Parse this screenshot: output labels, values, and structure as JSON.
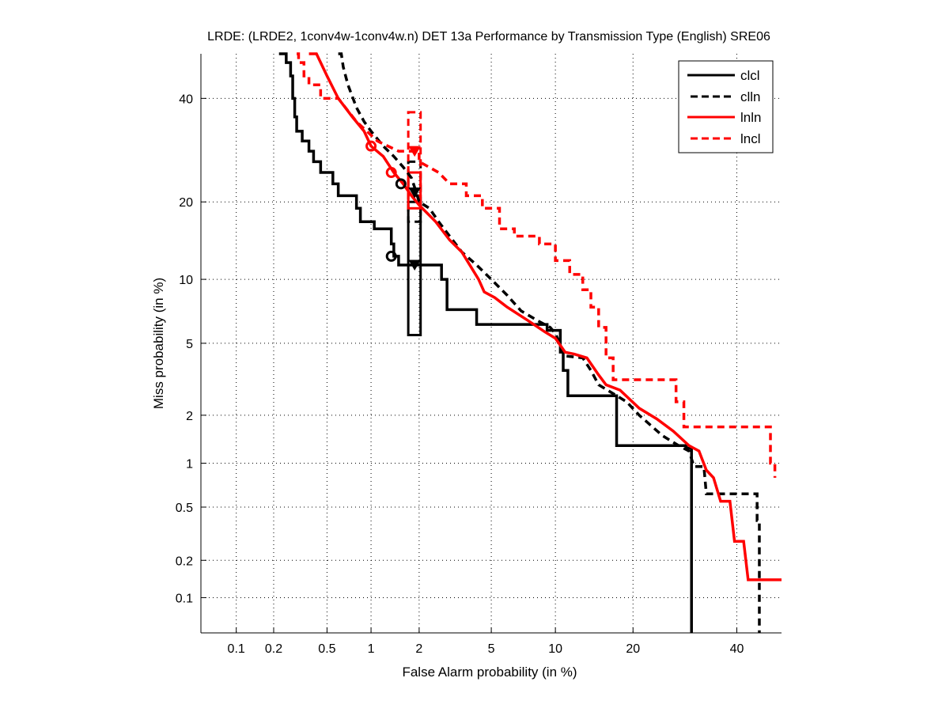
{
  "chart_data": {
    "type": "line",
    "scale": "probit",
    "title": "LRDE: (LRDE2, 1conv4w-1conv4w.n) DET 13a Performance by Transmission Type (English) SRE06",
    "xlabel": "False Alarm probability (in %)",
    "ylabel": "Miss probability (in %)",
    "xlim": [
      0.05,
      50
    ],
    "ylim": [
      0.05,
      50
    ],
    "grid": true,
    "legend_position": "top-right",
    "xticks": [
      0.1,
      0.2,
      0.5,
      1,
      2,
      5,
      10,
      20,
      40
    ],
    "xtick_labels": [
      "0.1",
      "0.2",
      "0.5",
      "1",
      "2",
      "5",
      "10",
      "20",
      "40"
    ],
    "yticks": [
      0.1,
      0.2,
      0.5,
      1,
      2,
      5,
      10,
      20,
      40
    ],
    "ytick_labels": [
      "0.1",
      "0.2",
      "0.5",
      "1",
      "2",
      "5",
      "10",
      "20",
      "40"
    ],
    "series": [
      {
        "name": "clcl",
        "color": "#000000",
        "dash": "solid",
        "points": [
          [
            0.22,
            50
          ],
          [
            0.25,
            50
          ],
          [
            0.25,
            48
          ],
          [
            0.27,
            48
          ],
          [
            0.27,
            45
          ],
          [
            0.28,
            45
          ],
          [
            0.28,
            40
          ],
          [
            0.29,
            40
          ],
          [
            0.29,
            36
          ],
          [
            0.3,
            36
          ],
          [
            0.3,
            33
          ],
          [
            0.33,
            33
          ],
          [
            0.33,
            31
          ],
          [
            0.37,
            31
          ],
          [
            0.37,
            29
          ],
          [
            0.4,
            29
          ],
          [
            0.4,
            27
          ],
          [
            0.45,
            27
          ],
          [
            0.45,
            25
          ],
          [
            0.55,
            25
          ],
          [
            0.55,
            23
          ],
          [
            0.6,
            23
          ],
          [
            0.6,
            21
          ],
          [
            0.8,
            21
          ],
          [
            0.8,
            19
          ],
          [
            0.85,
            19
          ],
          [
            0.85,
            17
          ],
          [
            1.05,
            17
          ],
          [
            1.05,
            16
          ],
          [
            1.35,
            16
          ],
          [
            1.35,
            14
          ],
          [
            1.4,
            14
          ],
          [
            1.4,
            12.5
          ],
          [
            1.5,
            12.5
          ],
          [
            1.5,
            11.5
          ],
          [
            2.7,
            11.5
          ],
          [
            2.7,
            10
          ],
          [
            2.9,
            10
          ],
          [
            2.9,
            7.3
          ],
          [
            4.2,
            7.3
          ],
          [
            4.2,
            6.2
          ],
          [
            9.2,
            6.2
          ],
          [
            9.2,
            5.8
          ],
          [
            10.5,
            5.8
          ],
          [
            10.5,
            4.5
          ],
          [
            10.8,
            4.5
          ],
          [
            10.8,
            3.6
          ],
          [
            11.3,
            3.6
          ],
          [
            11.3,
            2.6
          ],
          [
            17.5,
            2.6
          ],
          [
            17.5,
            1.3
          ],
          [
            29.5,
            1.3
          ],
          [
            29.5,
            1.25
          ],
          [
            30.5,
            1.25
          ],
          [
            30.5,
            0.05
          ]
        ]
      },
      {
        "name": "clln",
        "color": "#000000",
        "dash": "dashed",
        "points": [
          [
            0.6,
            50
          ],
          [
            0.63,
            50
          ],
          [
            0.65,
            47
          ],
          [
            0.7,
            43
          ],
          [
            0.8,
            38
          ],
          [
            0.9,
            35
          ],
          [
            1.0,
            33
          ],
          [
            1.2,
            30
          ],
          [
            1.4,
            28
          ],
          [
            1.6,
            26
          ],
          [
            1.8,
            24
          ],
          [
            1.9,
            22
          ],
          [
            2.0,
            20
          ],
          [
            2.3,
            19
          ],
          [
            2.6,
            17
          ],
          [
            3.0,
            15
          ],
          [
            3.5,
            13
          ],
          [
            4.2,
            11.5
          ],
          [
            5.0,
            10
          ],
          [
            6.0,
            8.5
          ],
          [
            7.0,
            7.2
          ],
          [
            8.5,
            6.4
          ],
          [
            9.5,
            6.0
          ],
          [
            10.0,
            5.6
          ],
          [
            11.0,
            4.3
          ],
          [
            13.0,
            4.2
          ],
          [
            14.0,
            3.6
          ],
          [
            15.0,
            3.0
          ],
          [
            19.0,
            2.4
          ],
          [
            21.0,
            2.0
          ],
          [
            25.0,
            1.5
          ],
          [
            28.0,
            1.3
          ],
          [
            30.0,
            1.2
          ],
          [
            31.0,
            0.95
          ],
          [
            33.0,
            0.95
          ],
          [
            33.5,
            0.62
          ],
          [
            44.5,
            0.62
          ],
          [
            44.5,
            0.4
          ],
          [
            45.0,
            0.4
          ],
          [
            45.0,
            0.05
          ]
        ]
      },
      {
        "name": "lnln",
        "color": "#ff0000",
        "dash": "solid",
        "points": [
          [
            0.37,
            50
          ],
          [
            0.42,
            50
          ],
          [
            0.5,
            45
          ],
          [
            0.6,
            40
          ],
          [
            0.75,
            36
          ],
          [
            0.9,
            33
          ],
          [
            1.0,
            30
          ],
          [
            1.2,
            28
          ],
          [
            1.4,
            25
          ],
          [
            1.6,
            23
          ],
          [
            1.8,
            21
          ],
          [
            2.0,
            19.5
          ],
          [
            2.5,
            17
          ],
          [
            3.0,
            14.5
          ],
          [
            3.5,
            13
          ],
          [
            4.0,
            11
          ],
          [
            4.3,
            10
          ],
          [
            4.6,
            8.8
          ],
          [
            5.2,
            8.3
          ],
          [
            6.0,
            7.5
          ],
          [
            7.5,
            6.5
          ],
          [
            9.0,
            5.7
          ],
          [
            10.0,
            5.3
          ],
          [
            11.0,
            4.5
          ],
          [
            12.0,
            4.4
          ],
          [
            13.5,
            4.2
          ],
          [
            15.0,
            3.4
          ],
          [
            16.0,
            3.0
          ],
          [
            18.0,
            2.8
          ],
          [
            21.0,
            2.2
          ],
          [
            24.0,
            1.9
          ],
          [
            27.0,
            1.6
          ],
          [
            30.0,
            1.3
          ],
          [
            32.0,
            1.2
          ],
          [
            33.5,
            0.9
          ],
          [
            35.0,
            0.8
          ],
          [
            36.5,
            0.55
          ],
          [
            38.5,
            0.55
          ],
          [
            39.5,
            0.28
          ],
          [
            41.5,
            0.28
          ],
          [
            42.5,
            0.14
          ],
          [
            50,
            0.14
          ]
        ]
      },
      {
        "name": "lncl",
        "color": "#ff0000",
        "dash": "dashed",
        "points": [
          [
            0.3,
            50
          ],
          [
            0.31,
            50
          ],
          [
            0.31,
            48
          ],
          [
            0.34,
            48
          ],
          [
            0.34,
            45
          ],
          [
            0.37,
            45
          ],
          [
            0.37,
            43
          ],
          [
            0.45,
            43
          ],
          [
            0.45,
            40
          ],
          [
            0.6,
            40
          ],
          [
            0.8,
            35
          ],
          [
            1.1,
            31
          ],
          [
            1.5,
            29
          ],
          [
            2.0,
            29
          ],
          [
            2.0,
            27
          ],
          [
            2.6,
            25
          ],
          [
            3.0,
            23
          ],
          [
            3.7,
            23
          ],
          [
            3.7,
            21
          ],
          [
            4.5,
            21
          ],
          [
            4.5,
            19
          ],
          [
            5.5,
            19
          ],
          [
            5.5,
            16
          ],
          [
            6.5,
            16
          ],
          [
            6.5,
            15
          ],
          [
            8.5,
            15
          ],
          [
            8.5,
            14
          ],
          [
            10.0,
            14
          ],
          [
            10.0,
            12
          ],
          [
            11.5,
            12
          ],
          [
            11.5,
            10.5
          ],
          [
            13.0,
            10.5
          ],
          [
            13.0,
            9
          ],
          [
            14.0,
            9
          ],
          [
            14.0,
            7.5
          ],
          [
            15.0,
            7.5
          ],
          [
            15.0,
            6
          ],
          [
            16.0,
            6
          ],
          [
            16.0,
            4.2
          ],
          [
            17.0,
            4.2
          ],
          [
            17.0,
            3.2
          ],
          [
            27.5,
            3.2
          ],
          [
            27.5,
            2.4
          ],
          [
            29.0,
            2.4
          ],
          [
            29.0,
            1.7
          ],
          [
            47.5,
            1.7
          ],
          [
            47.5,
            1.0
          ],
          [
            48.5,
            1.0
          ],
          [
            48.5,
            0.8
          ]
        ]
      }
    ],
    "markers": [
      {
        "series": "clcl",
        "shape": "circle",
        "x": 1.35,
        "y": 12.5,
        "color": "#000000"
      },
      {
        "series": "clln",
        "shape": "circle",
        "x": 1.55,
        "y": 23,
        "color": "#000000"
      },
      {
        "series": "lnln",
        "shape": "circle",
        "x": 1.0,
        "y": 30,
        "color": "#ff0000"
      },
      {
        "series": "lnln",
        "shape": "circle",
        "x": 1.35,
        "y": 25,
        "color": "#ff0000"
      },
      {
        "series": "clcl",
        "shape": "triangle",
        "x": 1.88,
        "y": 11.5,
        "color": "#000000"
      },
      {
        "series": "clln",
        "shape": "triangle",
        "x": 1.88,
        "y": 21.5,
        "color": "#000000"
      },
      {
        "series": "lncl",
        "shape": "triangle",
        "x": 1.88,
        "y": 29,
        "color": "#ff0000"
      }
    ],
    "confidence_boxes": [
      {
        "series": "clcl",
        "x": [
          1.72,
          2.04
        ],
        "y": [
          5.5,
          20
        ],
        "color": "#000000",
        "dash": "solid"
      },
      {
        "series": "clln",
        "x": [
          1.72,
          2.04
        ],
        "y": [
          17,
          27
        ],
        "color": "#000000",
        "dash": "dashed"
      },
      {
        "series": "lnln",
        "x": [
          1.72,
          2.04
        ],
        "y": [
          19,
          25
        ],
        "color": "#ff0000",
        "dash": "solid"
      },
      {
        "series": "lncl",
        "x": [
          1.72,
          2.04
        ],
        "y": [
          21,
          37
        ],
        "color": "#ff0000",
        "dash": "dashed"
      }
    ]
  }
}
